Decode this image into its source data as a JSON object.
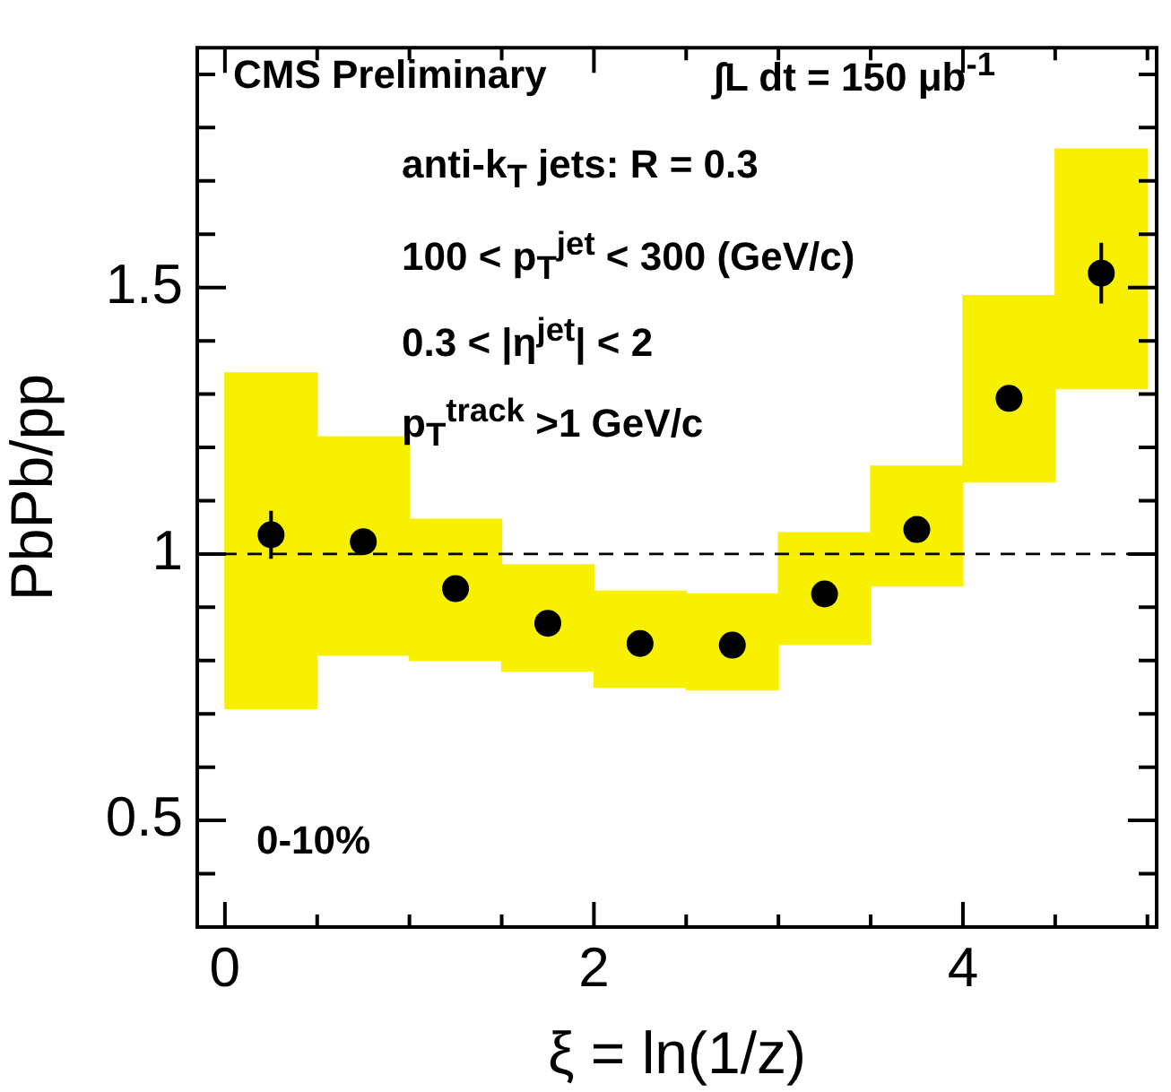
{
  "chart_data": {
    "type": "scatter",
    "xlabel": "ξ = ln(1/z)",
    "ylabel": "PbPb/pp",
    "xlim": [
      -0.15,
      5.05
    ],
    "ylim": [
      0.3,
      1.95
    ],
    "xticks": [
      0,
      {
        "value": 0.5,
        "label": null
      },
      {
        "value": 1,
        "label": null
      },
      {
        "value": 1.5,
        "label": null
      },
      2,
      {
        "value": 2.5,
        "label": null
      },
      {
        "value": 3,
        "label": null
      },
      {
        "value": 3.5,
        "label": null
      },
      4,
      {
        "value": 4.5,
        "label": null
      },
      {
        "value": 5,
        "label": null
      }
    ],
    "yticks": [
      {
        "value": 0.4,
        "label": null
      },
      0.5,
      {
        "value": 0.6,
        "label": null
      },
      {
        "value": 0.7,
        "label": null
      },
      {
        "value": 0.8,
        "label": null
      },
      {
        "value": 0.9,
        "label": null
      },
      1,
      {
        "value": 1.1,
        "label": null
      },
      {
        "value": 1.2,
        "label": null
      },
      {
        "value": 1.3,
        "label": null
      },
      {
        "value": 1.4,
        "label": null
      },
      1.5,
      {
        "value": 1.6,
        "label": null
      },
      {
        "value": 1.7,
        "label": null
      },
      {
        "value": 1.8,
        "label": null
      },
      {
        "value": 1.9,
        "label": null
      }
    ],
    "series": [
      {
        "type": "bar",
        "color": "#f7f000",
        "x": [
          0.25,
          0.75,
          1.25,
          1.75,
          2.25,
          2.75,
          3.25,
          3.75,
          4.25,
          4.75
        ],
        "base": [
          0.71,
          0.81,
          0.8,
          0.78,
          0.75,
          0.745,
          0.83,
          0.94,
          1.135,
          1.31
        ],
        "values": [
          0.63,
          0.41,
          0.265,
          0.2,
          0.18,
          0.18,
          0.21,
          0.225,
          0.35,
          0.45
        ]
      },
      {
        "color": "#000000",
        "x": [
          0.25,
          0.75,
          1.25,
          1.75,
          2.25,
          2.75,
          3.25,
          3.75,
          4.25,
          4.75
        ],
        "values": [
          1.036,
          1.023,
          0.935,
          0.87,
          0.832,
          0.829,
          0.925,
          1.046,
          1.292,
          1.527
        ],
        "errors": [
          0.045,
          null,
          null,
          null,
          null,
          null,
          null,
          null,
          null,
          0.057
        ]
      }
    ],
    "marker": "circle",
    "ref_lines": [
      {
        "axis": "y",
        "value": 1,
        "color": "#000000",
        "line_style": "dashed"
      }
    ],
    "annotations": [
      "CMS Preliminary",
      "∫L dt = 150 μb$^{-1}$",
      "anti-k$_{T}$ jets: R = 0.3",
      "100 < p$_{T}$$^{jet}$ < 300 (GeV/c)",
      "0.3 < |η$^{jet}$| < 2",
      "p$_{T}$$^{track}$ >1 GeV/c",
      "0-10%"
    ]
  }
}
